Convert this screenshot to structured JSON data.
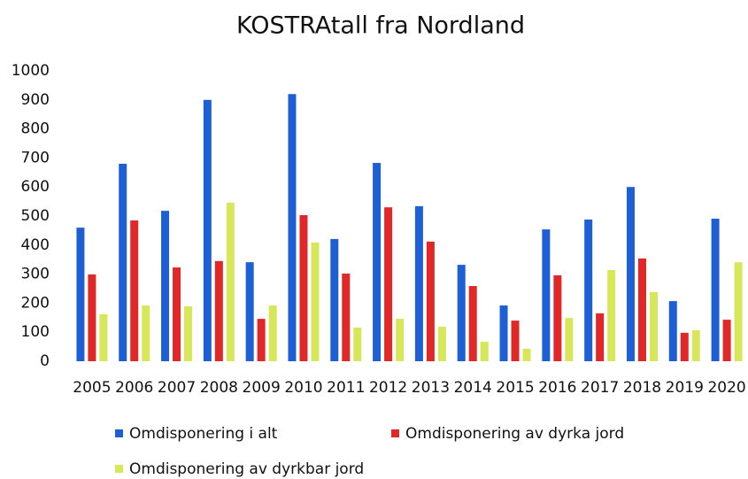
{
  "chart_data": {
    "type": "bar",
    "title": "KOSTRAtall fra Nordland",
    "categories": [
      "2005",
      "2006",
      "2007",
      "2008",
      "2009",
      "2010",
      "2011",
      "2012",
      "2013",
      "2014",
      "2015",
      "2016",
      "2017",
      "2018",
      "2019",
      "2020"
    ],
    "series": [
      {
        "name": "Omdisponering i alt",
        "color": "#1f5fd6",
        "values": [
          460,
          680,
          518,
          900,
          341,
          920,
          421,
          683,
          534,
          332,
          192,
          454,
          488,
          600,
          207,
          491
        ]
      },
      {
        "name": "Omdisponering av dyrka jord",
        "color": "#e02828",
        "values": [
          299,
          485,
          323,
          345,
          146,
          503,
          302,
          530,
          412,
          259,
          140,
          296,
          165,
          354,
          98,
          143
        ]
      },
      {
        "name": "Omdisponering av dyrkbar jord",
        "color": "#d8e65a",
        "values": [
          162,
          192,
          189,
          546,
          192,
          409,
          116,
          146,
          119,
          67,
          43,
          149,
          314,
          238,
          107,
          341
        ]
      }
    ],
    "ylim": [
      0,
      1000
    ],
    "yticks": [
      0,
      100,
      200,
      300,
      400,
      500,
      600,
      700,
      800,
      900,
      1000
    ],
    "grid": false
  }
}
